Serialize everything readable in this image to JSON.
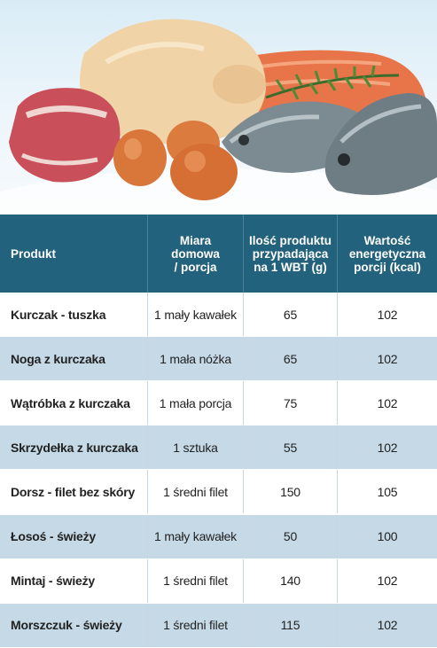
{
  "table": {
    "headers": [
      "Produkt",
      "Miara\ndomowa\n/ porcja",
      "Ilość produktu\nprzypadająca\nna 1 WBT (g)",
      "Wartość\nenergetyczna\nporcji (kcal)"
    ],
    "rows": [
      [
        "Kurczak - tuszka",
        "1 mały kawałek",
        "65",
        "102"
      ],
      [
        "Noga z kurczaka",
        "1 mała nóżka",
        "65",
        "102"
      ],
      [
        "Wątróbka z kurczaka",
        "1 mała porcja",
        "75",
        "102"
      ],
      [
        "Skrzydełka z kurczaka",
        "1 sztuka",
        "55",
        "102"
      ],
      [
        "Dorsz - filet bez skóry",
        "1 średni filet",
        "150",
        "105"
      ],
      [
        "Łosoś - świeży",
        "1 mały kawałek",
        "50",
        "100"
      ],
      [
        "Mintaj - świeży",
        "1 średni filet",
        "140",
        "102"
      ],
      [
        "Morszczuk - świeży",
        "1 średni filet",
        "115",
        "102"
      ]
    ]
  },
  "colors": {
    "header_bg": "#23627c",
    "row_alt_bg": "#c5d9e6"
  }
}
